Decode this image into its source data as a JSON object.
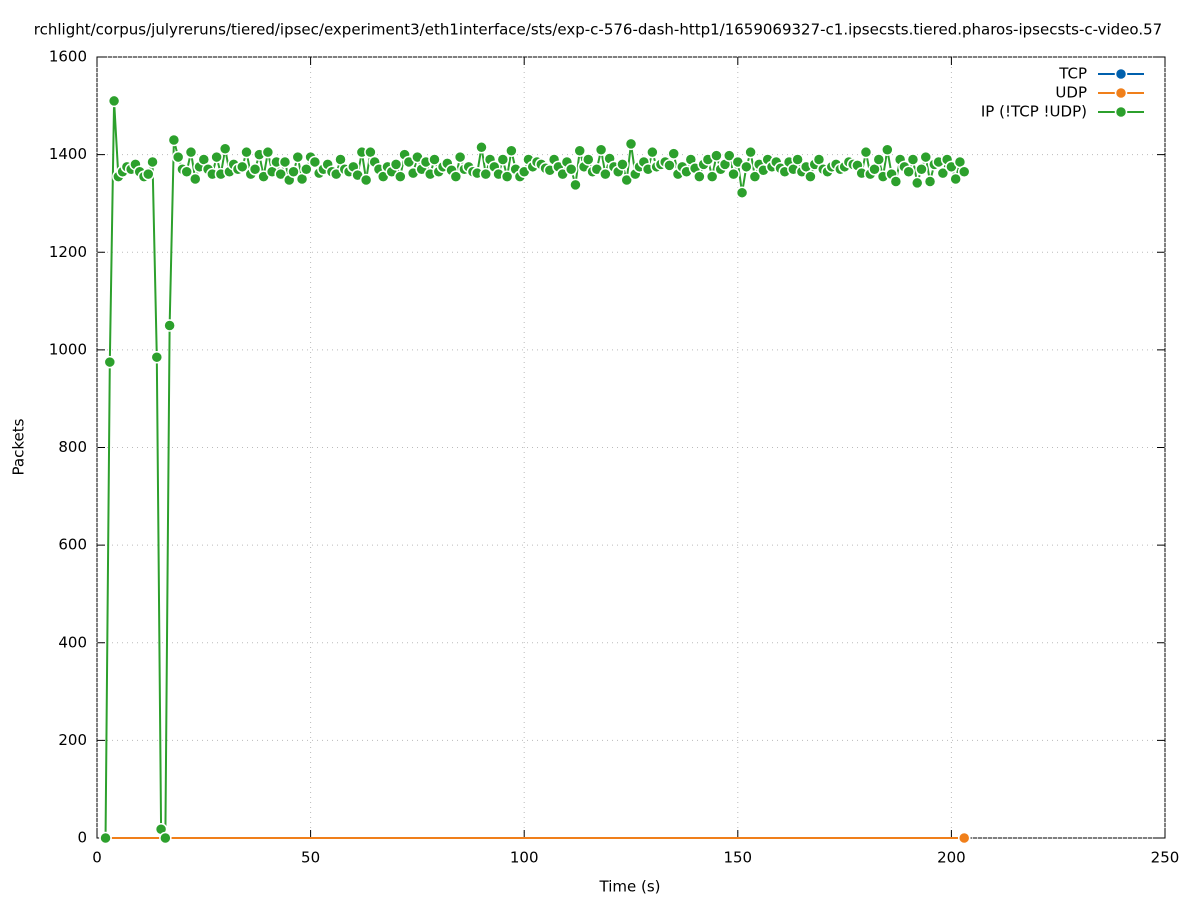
{
  "chart_data": {
    "type": "line",
    "title": "rchlight/corpus/julyreruns/tiered/ipsec/experiment3/eth1interface/sts/exp-c-576-dash-http1/1659069327-c1.ipsecsts.tiered.pharos-ipsecsts-c-video.57",
    "x_label": "Time (s)",
    "y_label": "Packets",
    "xlim": [
      0,
      250
    ],
    "xticks": [
      0,
      50,
      100,
      150,
      200,
      250
    ],
    "ylim": [
      0,
      1600
    ],
    "yticks": [
      0,
      200,
      400,
      600,
      800,
      1000,
      1200,
      1400,
      1600
    ],
    "grid": true,
    "legend": "top-right",
    "series": [
      {
        "name": "TCP",
        "color": "#0060ad",
        "x": [
          2,
          203
        ],
        "values": [
          0,
          0
        ]
      },
      {
        "name": "UDP",
        "color": "#f07f1a",
        "x": [
          2,
          203
        ],
        "values": [
          0,
          0
        ]
      },
      {
        "name": "IP (!TCP  !UDP)",
        "color": "#2ca02c",
        "x": [
          2,
          3,
          4,
          5,
          6,
          7,
          8,
          9,
          10,
          11,
          12,
          13,
          14,
          15,
          16,
          17,
          18,
          19,
          20,
          21,
          22,
          23,
          24,
          25,
          26,
          27,
          28,
          29,
          30,
          31,
          32,
          33,
          34,
          35,
          36,
          37,
          38,
          39,
          40,
          41,
          42,
          43,
          44,
          45,
          46,
          47,
          48,
          49,
          50,
          51,
          52,
          53,
          54,
          55,
          56,
          57,
          58,
          59,
          60,
          61,
          62,
          63,
          64,
          65,
          66,
          67,
          68,
          69,
          70,
          71,
          72,
          73,
          74,
          75,
          76,
          77,
          78,
          79,
          80,
          81,
          82,
          83,
          84,
          85,
          86,
          87,
          88,
          89,
          90,
          91,
          92,
          93,
          94,
          95,
          96,
          97,
          98,
          99,
          100,
          101,
          102,
          103,
          104,
          105,
          106,
          107,
          108,
          109,
          110,
          111,
          112,
          113,
          114,
          115,
          116,
          117,
          118,
          119,
          120,
          121,
          122,
          123,
          124,
          125,
          126,
          127,
          128,
          129,
          130,
          131,
          132,
          133,
          134,
          135,
          136,
          137,
          138,
          139,
          140,
          141,
          142,
          143,
          144,
          145,
          146,
          147,
          148,
          149,
          150,
          151,
          152,
          153,
          154,
          155,
          156,
          157,
          158,
          159,
          160,
          161,
          162,
          163,
          164,
          165,
          166,
          167,
          168,
          169,
          170,
          171,
          172,
          173,
          174,
          175,
          176,
          177,
          178,
          179,
          180,
          181,
          182,
          183,
          184,
          185,
          186,
          187,
          188,
          189,
          190,
          191,
          192,
          193,
          194,
          195,
          196,
          197,
          198,
          199,
          200,
          201,
          202,
          203
        ],
        "values": [
          0,
          975,
          1510,
          1355,
          1365,
          1375,
          1370,
          1380,
          1365,
          1355,
          1360,
          1385,
          985,
          18,
          0,
          1050,
          1430,
          1395,
          1370,
          1365,
          1405,
          1350,
          1375,
          1390,
          1370,
          1360,
          1395,
          1360,
          1412,
          1365,
          1380,
          1370,
          1375,
          1405,
          1360,
          1370,
          1400,
          1355,
          1405,
          1365,
          1385,
          1360,
          1385,
          1348,
          1365,
          1395,
          1350,
          1370,
          1395,
          1385,
          1362,
          1370,
          1380,
          1365,
          1360,
          1390,
          1370,
          1365,
          1375,
          1358,
          1405,
          1348,
          1405,
          1385,
          1370,
          1355,
          1375,
          1365,
          1380,
          1355,
          1400,
          1385,
          1362,
          1395,
          1370,
          1385,
          1360,
          1390,
          1365,
          1375,
          1382,
          1368,
          1355,
          1395,
          1370,
          1375,
          1365,
          1362,
          1415,
          1360,
          1390,
          1375,
          1360,
          1390,
          1355,
          1408,
          1370,
          1355,
          1365,
          1390,
          1375,
          1385,
          1380,
          1372,
          1368,
          1390,
          1375,
          1360,
          1385,
          1370,
          1338,
          1408,
          1375,
          1390,
          1365,
          1370,
          1410,
          1360,
          1392,
          1375,
          1365,
          1380,
          1348,
          1422,
          1360,
          1375,
          1385,
          1370,
          1405,
          1375,
          1380,
          1385,
          1378,
          1402,
          1360,
          1375,
          1365,
          1390,
          1372,
          1355,
          1380,
          1390,
          1355,
          1398,
          1370,
          1380,
          1398,
          1360,
          1385,
          1322,
          1375,
          1405,
          1355,
          1380,
          1368,
          1390,
          1375,
          1385,
          1372,
          1365,
          1385,
          1370,
          1390,
          1365,
          1375,
          1355,
          1380,
          1390,
          1370,
          1365,
          1375,
          1380,
          1370,
          1375,
          1385,
          1380,
          1378,
          1362,
          1405,
          1360,
          1370,
          1390,
          1355,
          1410,
          1360,
          1345,
          1390,
          1375,
          1365,
          1390,
          1342,
          1370,
          1395,
          1345,
          1380,
          1385,
          1362,
          1390,
          1375,
          1350,
          1385,
          1365
        ]
      }
    ]
  }
}
